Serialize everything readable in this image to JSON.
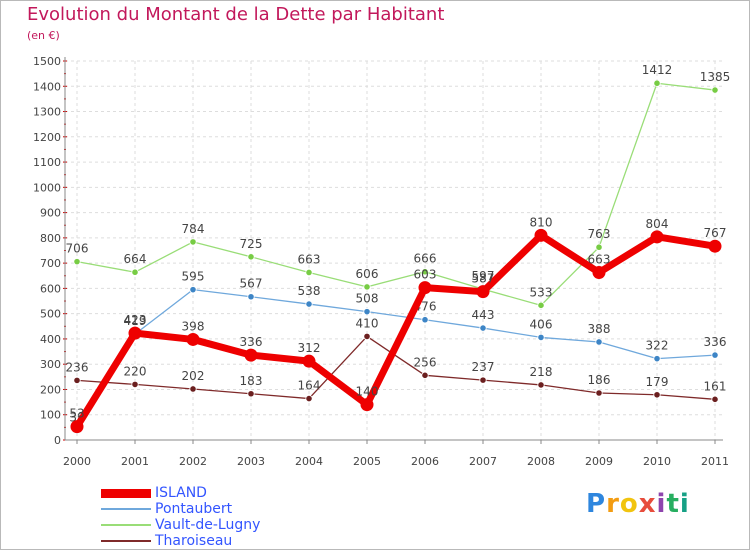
{
  "header": {
    "title": "Evolution du Montant de la Dette par Habitant",
    "subtitle": "(en €)"
  },
  "brand": {
    "letters": [
      "P",
      "r",
      "o",
      "x",
      "i",
      "t",
      "i"
    ],
    "letter_colors": [
      "#2e86de",
      "#f39c12",
      "#f1c40f",
      "#e74c3c",
      "#8e44ad",
      "#27ae60",
      "#16a085"
    ]
  },
  "chart_data": {
    "type": "line",
    "title": "Evolution du Montant de la Dette par Habitant",
    "subtitle": "(en €)",
    "categories": [
      "2000",
      "2001",
      "2002",
      "2003",
      "2004",
      "2005",
      "2006",
      "2007",
      "2008",
      "2009",
      "2010",
      "2011"
    ],
    "y_ticks": [
      "0",
      "100",
      "200",
      "300",
      "400",
      "500",
      "600",
      "700",
      "800",
      "900",
      "1000",
      "1100",
      "1200",
      "1300",
      "1400",
      "1500"
    ],
    "ylim": [
      0,
      1500
    ],
    "grid": true,
    "legend_position": "bottom-left",
    "series": [
      {
        "name": "Vault-de-Lugny",
        "color": "#99dd77",
        "marker": "#77cc44",
        "values": [
          706,
          664,
          784,
          725,
          663,
          606,
          666,
          597,
          533,
          763,
          1412,
          1385
        ],
        "labels": [
          "706",
          "664",
          "784",
          "725",
          "663",
          "606",
          "666",
          "597",
          "533",
          "763",
          "1412",
          "1385"
        ]
      },
      {
        "name": "Pontaubert",
        "color": "#6fa8dc",
        "marker": "#3d85c6",
        "values": [
          38,
          419,
          595,
          567,
          538,
          508,
          476,
          443,
          406,
          388,
          322,
          336
        ],
        "labels": [
          "38",
          "419",
          "595",
          "567",
          "538",
          "508",
          "476",
          "443",
          "406",
          "388",
          "322",
          "336"
        ]
      },
      {
        "name": "Tharoiseau",
        "color": "#7f2a2a",
        "marker": "#6b1f1f",
        "values": [
          236,
          220,
          202,
          183,
          164,
          410,
          256,
          237,
          218,
          186,
          179,
          161
        ],
        "labels": [
          "236",
          "220",
          "202",
          "183",
          "164",
          "410",
          "256",
          "237",
          "218",
          "186",
          "179",
          "161"
        ]
      },
      {
        "name": "ISLAND",
        "color": "#ee0000",
        "marker": "#ee0000",
        "values": [
          53,
          423,
          398,
          336,
          312,
          140,
          603,
          587,
          810,
          663,
          804,
          767
        ],
        "labels": [
          "53",
          "423",
          "398",
          "336",
          "312",
          "140",
          "603",
          "587",
          "810",
          "663",
          "804",
          "767"
        ]
      }
    ],
    "legend": [
      {
        "name": "ISLAND",
        "color": "#ee0000"
      },
      {
        "name": "Pontaubert",
        "color": "#6fa8dc"
      },
      {
        "name": "Vault-de-Lugny",
        "color": "#99dd77"
      },
      {
        "name": "Tharoiseau",
        "color": "#7f2a2a"
      }
    ]
  }
}
